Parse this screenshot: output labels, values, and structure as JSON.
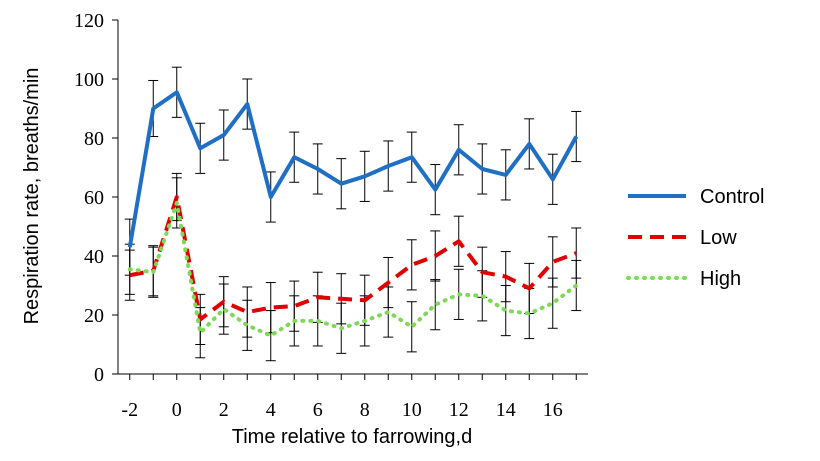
{
  "chart_data": {
    "type": "line",
    "title": "",
    "xlabel": "Time relative to farrowing,d",
    "ylabel": "Respiration rate, breaths/min",
    "xlim": [
      -2.5,
      17.5
    ],
    "ylim": [
      0,
      120
    ],
    "x_ticks": [
      -2,
      0,
      2,
      4,
      6,
      8,
      10,
      12,
      14,
      16
    ],
    "y_ticks": [
      0,
      20,
      40,
      60,
      80,
      100,
      120
    ],
    "grid": false,
    "legend_position": "right",
    "x": [
      -2,
      -1,
      0,
      1,
      2,
      3,
      4,
      5,
      6,
      7,
      8,
      9,
      10,
      11,
      12,
      13,
      14,
      15,
      16,
      17
    ],
    "series": [
      {
        "name": "Control",
        "color": "#1F6FC5",
        "line_style": "solid",
        "values": [
          43,
          90,
          95.5,
          76.5,
          81,
          91.5,
          60,
          73.5,
          69.5,
          64.5,
          67,
          70.5,
          73.5,
          62.5,
          76,
          69.5,
          67.5,
          78,
          66,
          80.5
        ],
        "error": [
          9.5,
          9.5,
          8.5,
          8.5,
          8.5,
          8.5,
          8.5,
          8.5,
          8.5,
          8.5,
          8.5,
          8.5,
          8.5,
          8.5,
          8.5,
          8.5,
          8.5,
          8.5,
          8.5,
          8.5
        ]
      },
      {
        "name": "Low",
        "color": "#E00000",
        "line_style": "dashed",
        "values": [
          33.5,
          35,
          60,
          18.5,
          24.5,
          21,
          22.5,
          23,
          26,
          25.5,
          25,
          31,
          37,
          40,
          45,
          34.5,
          33,
          29,
          38,
          41
        ],
        "error": [
          8.5,
          8.5,
          8,
          8.5,
          8.5,
          8.5,
          8.5,
          8.5,
          8.5,
          8.5,
          8.5,
          8.5,
          8.5,
          8.5,
          8.5,
          8.5,
          8.5,
          8.5,
          8.5,
          8.5
        ]
      },
      {
        "name": "High",
        "color": "#7ED957",
        "line_style": "dotted",
        "values": [
          35.5,
          34.5,
          58,
          14,
          22,
          16.5,
          13,
          18,
          18,
          15.5,
          18,
          21,
          16,
          23.5,
          27,
          26.5,
          21.5,
          20.5,
          24,
          30
        ],
        "error": [
          8.5,
          8.5,
          8.5,
          8.5,
          8.5,
          8.5,
          8.5,
          8.5,
          8.5,
          8.5,
          8.5,
          8.5,
          8.5,
          8.5,
          8.5,
          8.5,
          8.5,
          8.5,
          8.5,
          8.5
        ]
      }
    ]
  }
}
